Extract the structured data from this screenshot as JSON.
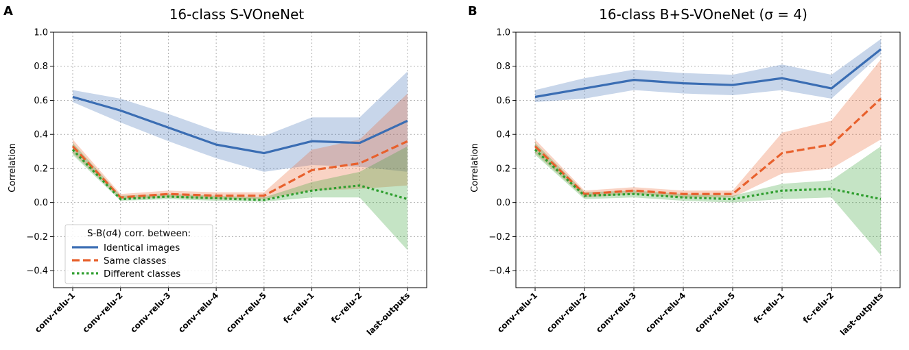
{
  "chart_data": [
    {
      "type": "line",
      "panel_label": "A",
      "title": "16-class S-VOneNet",
      "xlabel": "",
      "ylabel": "Correlation",
      "ylim": [
        -0.5,
        1.0
      ],
      "yticks": [
        "1.0",
        "0.8",
        "0.6",
        "0.4",
        "0.2",
        "0.0",
        "−0.2",
        "−0.4"
      ],
      "categories": [
        "conv-relu-1",
        "conv-relu-2",
        "conv-relu-3",
        "conv-relu-4",
        "conv-relu-5",
        "fc-relu-1",
        "fc-relu-2",
        "last-outputs"
      ],
      "grid": true,
      "legend": {
        "position": "lower-left",
        "title": "S-B(σ4) corr. between:",
        "entries": [
          "Identical images",
          "Same classes",
          "Different classes"
        ]
      },
      "series": [
        {
          "name": "Identical images",
          "color": "#3a6db3",
          "style": "solid",
          "values": [
            0.62,
            0.54,
            0.44,
            0.34,
            0.29,
            0.36,
            0.35,
            0.48
          ],
          "lower": [
            0.59,
            0.47,
            0.36,
            0.26,
            0.18,
            0.22,
            0.21,
            0.18
          ],
          "upper": [
            0.66,
            0.61,
            0.52,
            0.42,
            0.39,
            0.5,
            0.5,
            0.77
          ]
        },
        {
          "name": "Same classes",
          "color": "#e8602c",
          "style": "dashed",
          "values": [
            0.33,
            0.03,
            0.05,
            0.04,
            0.04,
            0.19,
            0.23,
            0.36
          ],
          "lower": [
            0.29,
            0.02,
            0.03,
            0.02,
            0.02,
            0.07,
            0.08,
            0.1
          ],
          "upper": [
            0.37,
            0.05,
            0.07,
            0.06,
            0.06,
            0.31,
            0.37,
            0.64
          ]
        },
        {
          "name": "Different classes",
          "color": "#2e9e2e",
          "style": "dotted",
          "values": [
            0.31,
            0.02,
            0.035,
            0.025,
            0.015,
            0.07,
            0.1,
            0.02
          ],
          "lower": [
            0.28,
            0.01,
            0.02,
            0.01,
            0.005,
            0.03,
            0.03,
            -0.28
          ],
          "upper": [
            0.35,
            0.04,
            0.05,
            0.04,
            0.03,
            0.12,
            0.18,
            0.33
          ]
        }
      ]
    },
    {
      "type": "line",
      "panel_label": "B",
      "title": "16-class B+S-VOneNet (σ = 4)",
      "xlabel": "",
      "ylabel": "Correlation",
      "ylim": [
        -0.5,
        1.0
      ],
      "yticks": [
        "1.0",
        "0.8",
        "0.6",
        "0.4",
        "0.2",
        "0.0",
        "−0.2",
        "−0.4"
      ],
      "categories": [
        "conv-relu-1",
        "conv-relu-2",
        "conv-relu-3",
        "conv-relu-4",
        "conv-relu-5",
        "fc-relu-1",
        "fc-relu-2",
        "last-outputs"
      ],
      "grid": true,
      "series": [
        {
          "name": "Identical images",
          "color": "#3a6db3",
          "style": "solid",
          "values": [
            0.62,
            0.67,
            0.72,
            0.7,
            0.69,
            0.73,
            0.67,
            0.9
          ],
          "lower": [
            0.59,
            0.61,
            0.66,
            0.64,
            0.63,
            0.66,
            0.61,
            0.87
          ],
          "upper": [
            0.66,
            0.73,
            0.78,
            0.76,
            0.75,
            0.81,
            0.75,
            0.96
          ]
        },
        {
          "name": "Same classes",
          "color": "#e8602c",
          "style": "dashed",
          "values": [
            0.33,
            0.05,
            0.07,
            0.05,
            0.05,
            0.29,
            0.34,
            0.61
          ],
          "lower": [
            0.29,
            0.03,
            0.05,
            0.03,
            0.03,
            0.17,
            0.2,
            0.37
          ],
          "upper": [
            0.37,
            0.07,
            0.09,
            0.07,
            0.07,
            0.41,
            0.48,
            0.84
          ]
        },
        {
          "name": "Different classes",
          "color": "#2e9e2e",
          "style": "dotted",
          "values": [
            0.31,
            0.04,
            0.05,
            0.03,
            0.02,
            0.07,
            0.08,
            0.02
          ],
          "lower": [
            0.28,
            0.02,
            0.03,
            0.01,
            0.0,
            0.02,
            0.03,
            -0.31
          ],
          "upper": [
            0.35,
            0.06,
            0.07,
            0.05,
            0.04,
            0.11,
            0.13,
            0.33
          ]
        }
      ]
    }
  ]
}
